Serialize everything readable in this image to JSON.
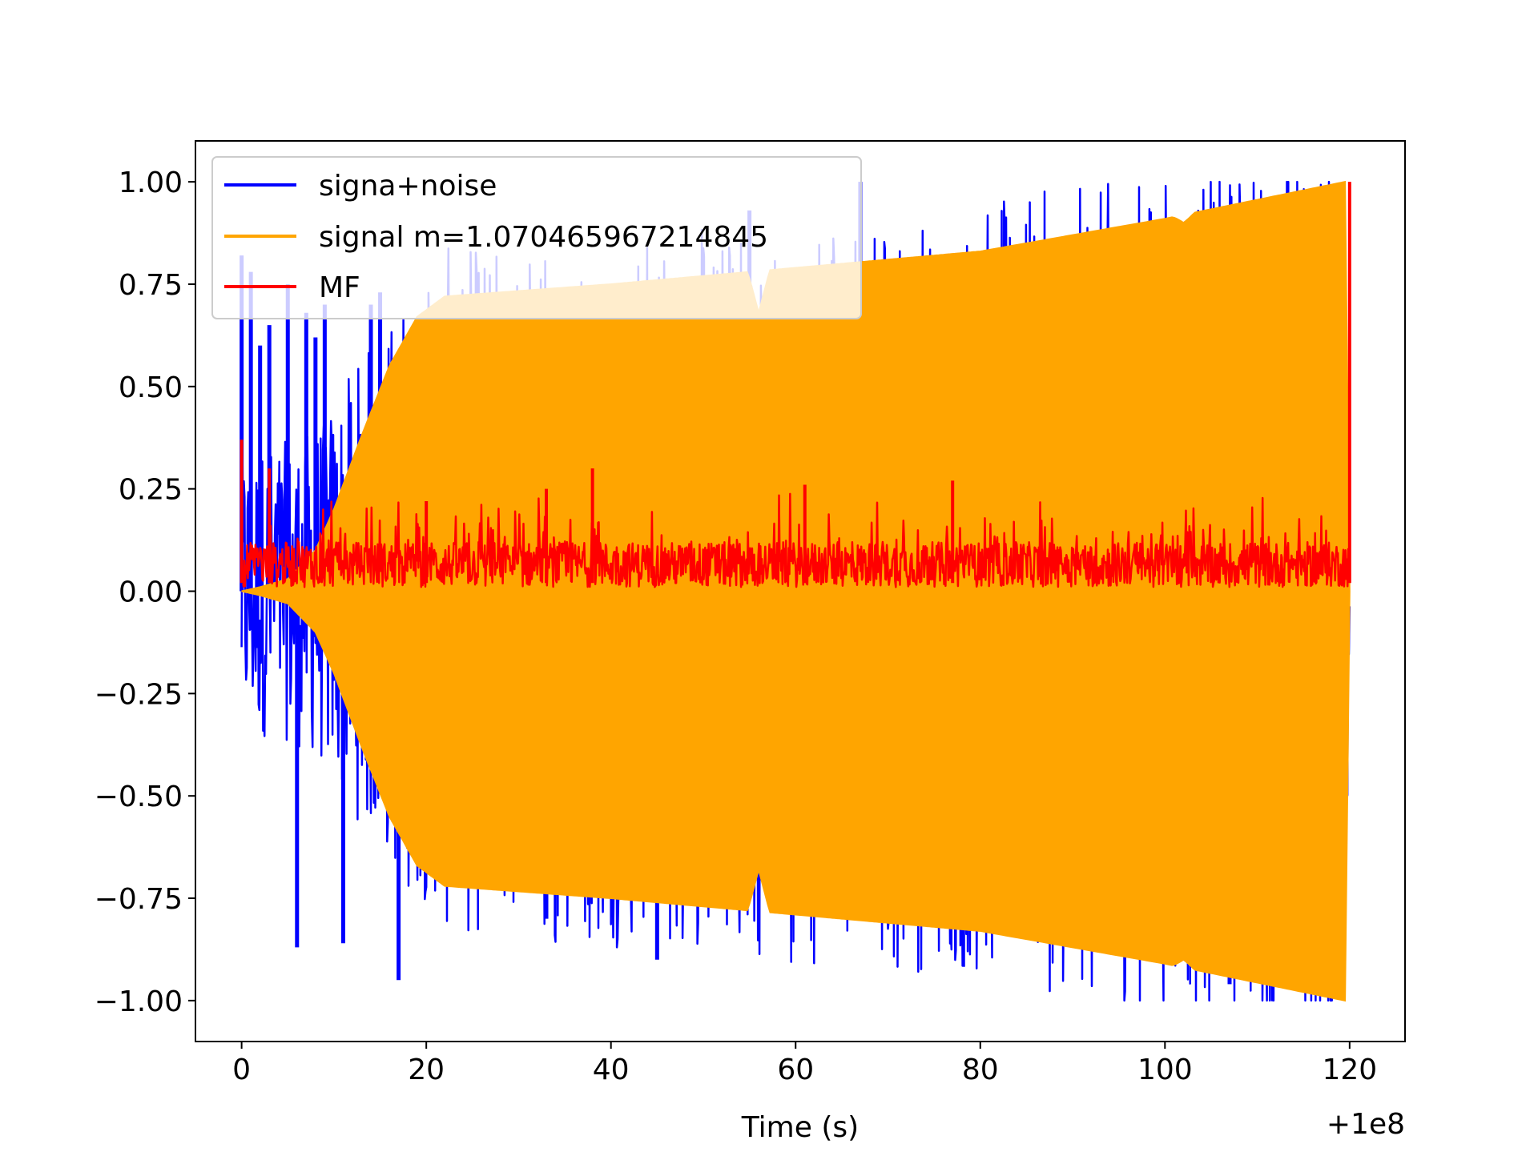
{
  "chart_data": {
    "type": "line",
    "title": "",
    "xlabel": "Time (s)",
    "ylabel": "",
    "x_offset_label": "+1e8",
    "xlim": [
      -5,
      126
    ],
    "ylim": [
      -1.1,
      1.1
    ],
    "xticks": [
      0,
      20,
      40,
      60,
      80,
      100,
      120
    ],
    "xtick_labels": [
      "0",
      "20",
      "40",
      "60",
      "80",
      "100",
      "120"
    ],
    "yticks": [
      1.0,
      0.75,
      0.5,
      0.25,
      0.0,
      -0.25,
      -0.5,
      -0.75,
      -1.0
    ],
    "ytick_labels": [
      "1.00",
      "0.75",
      "0.50",
      "0.25",
      "0.00",
      "−0.25",
      "−0.50",
      "−0.75",
      "−1.00"
    ],
    "grid": false,
    "legend_position": "upper-left",
    "series": [
      {
        "name": "signa+noise",
        "color": "#0000ff",
        "approx": "dense noisy oscillation; large spikes early (0–20 s), one peak reaching 1.00 near t=67",
        "spikes": [
          [
            0,
            0.82
          ],
          [
            1,
            0.78
          ],
          [
            2,
            0.6
          ],
          [
            3,
            0.65
          ],
          [
            5,
            0.75
          ],
          [
            6,
            -0.87
          ],
          [
            7,
            0.68
          ],
          [
            8,
            0.62
          ],
          [
            9,
            0.7
          ],
          [
            11,
            -0.86
          ],
          [
            14,
            0.7
          ],
          [
            15,
            0.73
          ],
          [
            17,
            -0.95
          ],
          [
            33,
            -0.8
          ],
          [
            45,
            -0.9
          ],
          [
            55,
            0.93
          ],
          [
            67,
            1.0
          ],
          [
            107,
            -0.96
          ]
        ]
      },
      {
        "name": "signal m=1.070465967214845",
        "color": "#ffa500",
        "approx": "chirp envelope: grows from 0 to ~0.72 over 0–22 s, then slowly rises to 1.0 at t=120",
        "envelope": [
          [
            0,
            0.0
          ],
          [
            2,
            0.01
          ],
          [
            5,
            0.03
          ],
          [
            8,
            0.1
          ],
          [
            10,
            0.2
          ],
          [
            13,
            0.38
          ],
          [
            16,
            0.55
          ],
          [
            19,
            0.67
          ],
          [
            22,
            0.72
          ],
          [
            40,
            0.75
          ],
          [
            60,
            0.79
          ],
          [
            80,
            0.83
          ],
          [
            100,
            0.91
          ],
          [
            119.5,
            1.0
          ],
          [
            120,
            0.0
          ]
        ],
        "dips": [
          [
            56,
            0.68
          ],
          [
            102,
            0.9
          ]
        ]
      },
      {
        "name": "MF",
        "color": "#ff0000",
        "approx": "noisy positive series mostly between 0.0 and ~0.2; spikes to ~0.38 at t=0 and 1.00 at t=120",
        "points": [
          [
            0,
            0.37
          ],
          [
            0.2,
            0.05
          ],
          [
            3,
            0.3
          ],
          [
            20,
            0.22
          ],
          [
            33,
            0.25
          ],
          [
            38,
            0.3
          ],
          [
            61,
            0.26
          ],
          [
            77,
            0.27
          ],
          [
            120,
            1.0
          ]
        ]
      }
    ]
  }
}
